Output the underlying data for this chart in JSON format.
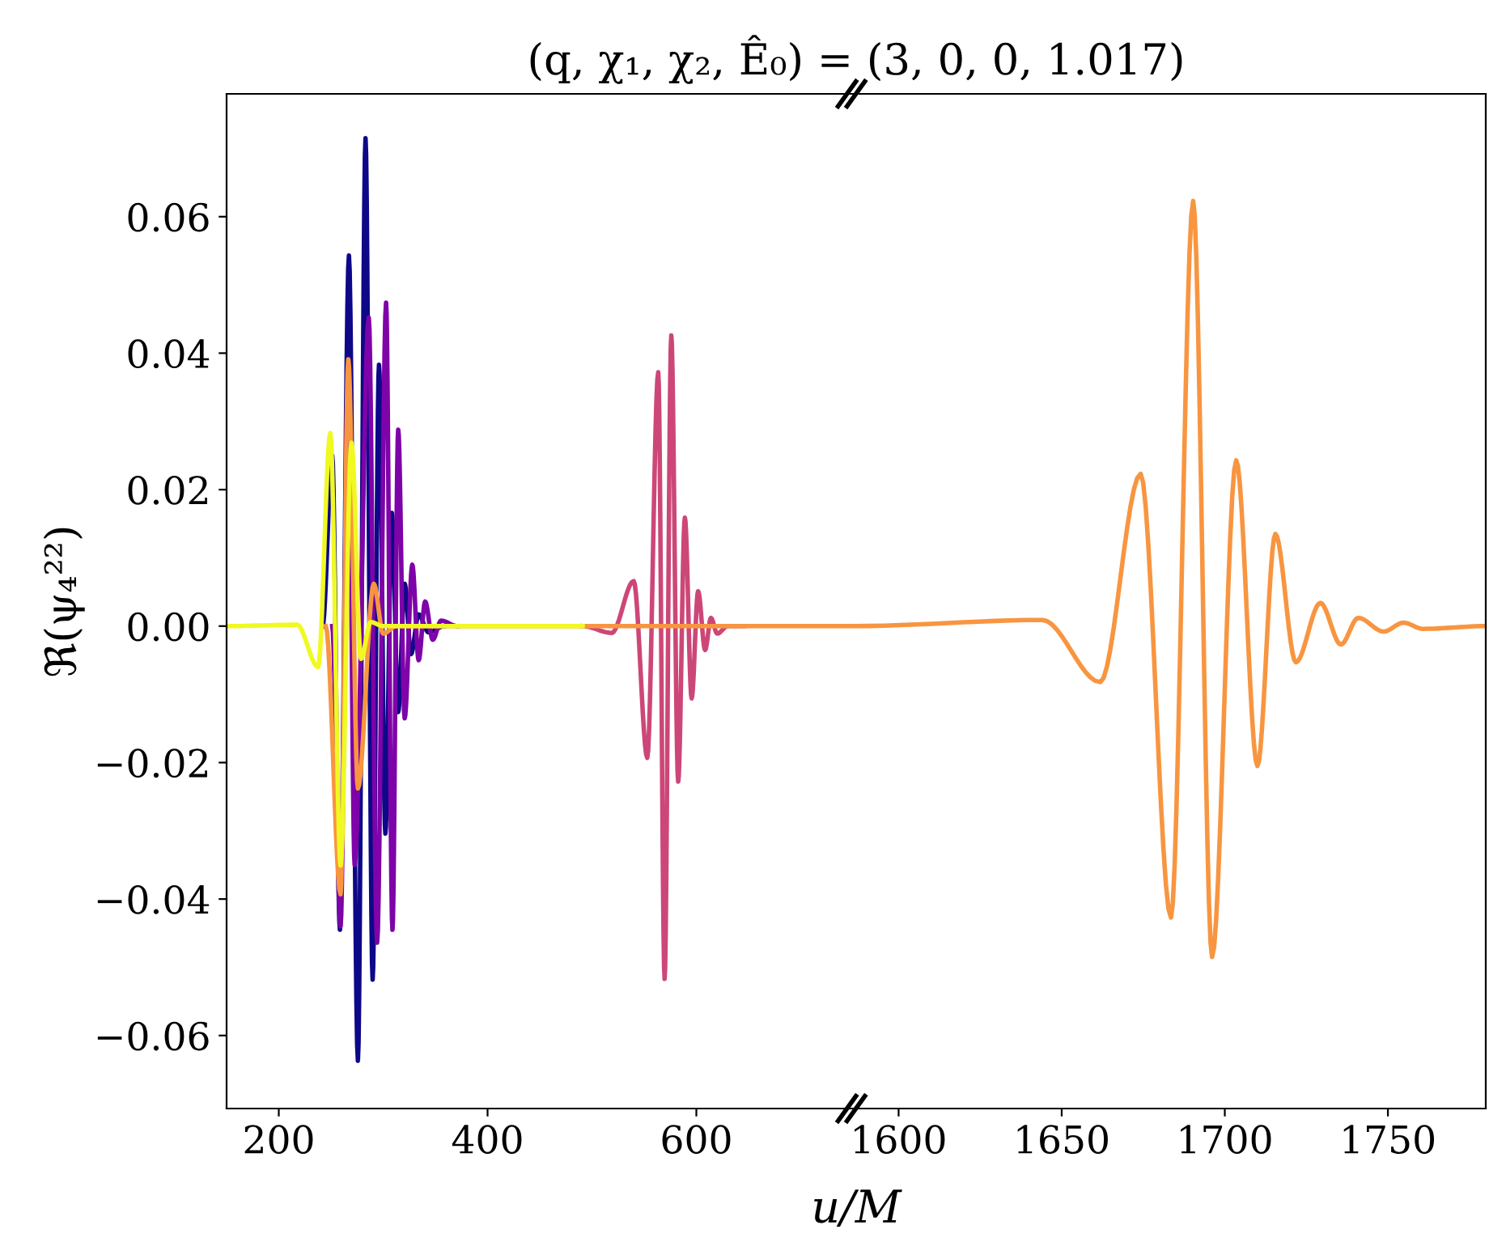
{
  "chart_data": [
    {
      "type": "line",
      "title": "(q, χ₁, χ₂, Ê₀) = (3, 0, 0, 1.017)",
      "xlabel": "u/M",
      "ylabel": "ℜ(ψ₄²²)",
      "xlim": [
        150,
        750
      ],
      "xticks": [
        200,
        400,
        600
      ],
      "ylim": [
        -0.0707,
        0.078
      ],
      "yticks": [
        {
          "value": -0.06,
          "label": "−0.06"
        },
        {
          "value": -0.04,
          "label": "−0.04"
        },
        {
          "value": -0.02,
          "label": "−0.02"
        },
        {
          "value": 0,
          "label": "0.00"
        },
        {
          "value": 0.02,
          "label": "0.02"
        },
        {
          "value": 0.04,
          "label": "0.04"
        },
        {
          "value": 0.06,
          "label": "0.06"
        }
      ],
      "grid": false,
      "legend": false,
      "marker": "none",
      "line_style": "solid",
      "series": [
        {
          "color": "#0d0887",
          "x": [
            242,
            251.2,
            258.6,
            267.2,
            275.8,
            283.1,
            289.9,
            296,
            302.1,
            308.3,
            314.4,
            320.6,
            326.7,
            334,
            343.3,
            358.6
          ],
          "values": [
            0,
            0.025,
            -0.0445,
            0.0543,
            -0.0637,
            0.0715,
            -0.0518,
            0.0383,
            -0.0304,
            0.0166,
            -0.0126,
            0.0062,
            -0.0041,
            0.0017,
            -0.0009,
            0
          ]
        },
        {
          "color": "#7e03a8",
          "x": [
            251.2,
            259.2,
            266.6,
            272.7,
            286.2,
            294.2,
            302.8,
            308.9,
            314.4,
            320.6,
            327.9,
            334,
            340.2,
            347.5,
            355.5,
            370.9
          ],
          "values": [
            0,
            -0.044,
            0.039,
            -0.035,
            0.0452,
            -0.0464,
            0.0474,
            -0.0445,
            0.0288,
            -0.0135,
            0.009,
            -0.005,
            0.0036,
            -0.002,
            0.0008,
            0
          ]
        },
        {
          "color": "#cc4778",
          "x": [
            491,
            519,
            540,
            553,
            563.5,
            569.6,
            576,
            582.6,
            589,
            595.5,
            601.7,
            608.4,
            614,
            620,
            630,
            646
          ],
          "values": [
            0,
            -0.001,
            0.0066,
            -0.0193,
            0.0372,
            -0.0517,
            0.0426,
            -0.0228,
            0.0159,
            -0.0106,
            0.0051,
            -0.0035,
            0.0012,
            -0.0011,
            0,
            0
          ]
        },
        {
          "color": "#f89540",
          "x": [
            245,
            259.2,
            266.6,
            275.8,
            291,
            300,
            312.6,
            750
          ],
          "values": [
            0,
            -0.0393,
            0.0391,
            -0.0238,
            0.0062,
            -0.0011,
            0,
            0
          ]
        },
        {
          "color": "#f0f921",
          "x": [
            150,
            217.5,
            237.7,
            249.4,
            259.2,
            269.6,
            278.8,
            288,
            300,
            491
          ],
          "values": [
            0,
            0.0002,
            -0.006,
            0.0283,
            -0.0351,
            0.0269,
            -0.0048,
            0.0006,
            0,
            0
          ]
        }
      ]
    },
    {
      "type": "line",
      "tick_labels": "x",
      "xlim": [
        1586,
        1780
      ],
      "xticks": [
        1600,
        1650,
        1700,
        1750
      ],
      "ylim": [
        -0.0707,
        0.078
      ],
      "grid": false,
      "legend": false,
      "marker": "none",
      "line_style": "solid",
      "series": [
        {
          "color": "#f89540",
          "x": [
            1586,
            1644.1,
            1661.8,
            1674.2,
            1683.5,
            1690.3,
            1696.1,
            1703.5,
            1710,
            1715.5,
            1721.8,
            1729.3,
            1735.6,
            1740.9,
            1748.7,
            1754.8,
            1760.7,
            1780
          ],
          "values": [
            0,
            0.0009,
            -0.0082,
            0.0223,
            -0.0427,
            0.0623,
            -0.0485,
            0.0243,
            -0.0205,
            0.0135,
            -0.0053,
            0.0034,
            -0.0027,
            0.0012,
            -0.0008,
            0.0005,
            -0.0004,
            0
          ]
        }
      ]
    }
  ]
}
